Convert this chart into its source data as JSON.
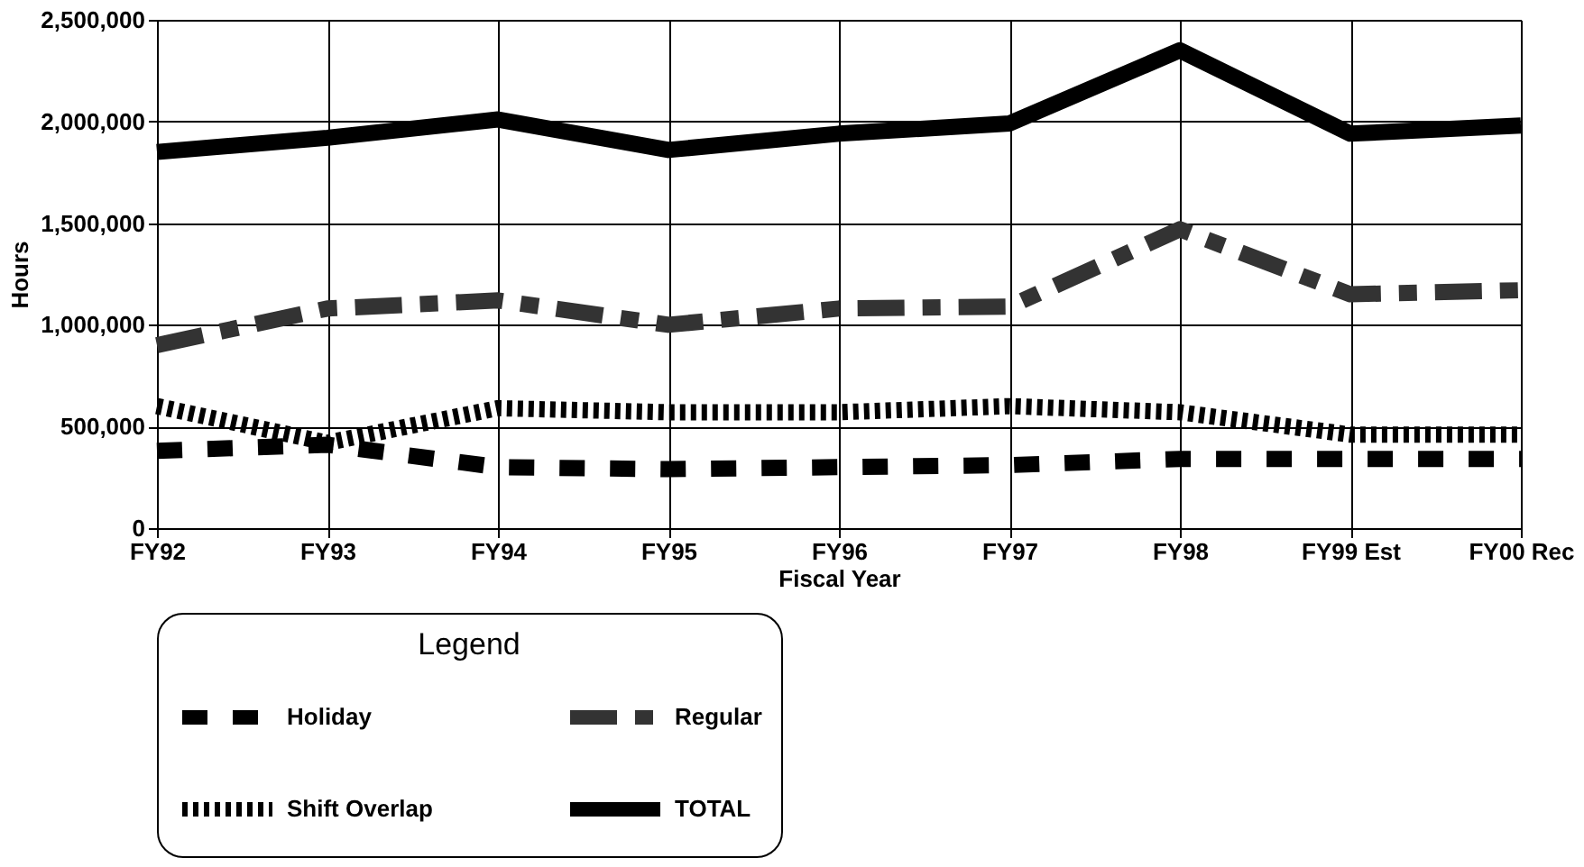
{
  "chart_data": {
    "type": "line",
    "xlabel": "Fiscal Year",
    "ylabel": "Hours",
    "legend_title": "Legend",
    "categories": [
      "FY92",
      "FY93",
      "FY94",
      "FY95",
      "FY96",
      "FY97",
      "FY98",
      "FY99 Est",
      "FY00 Rec"
    ],
    "series": [
      {
        "name": "Holiday",
        "color": "#000000",
        "line_style": "dashed",
        "values": [
          380000,
          410000,
          300000,
          290000,
          300000,
          310000,
          340000,
          340000,
          340000
        ]
      },
      {
        "name": "Regular",
        "color": "#333333",
        "line_style": "dashdot",
        "values": [
          900000,
          1080000,
          1120000,
          1000000,
          1080000,
          1090000,
          1470000,
          1150000,
          1170000
        ]
      },
      {
        "name": "Shift Overlap",
        "color": "#000000",
        "line_style": "dotted",
        "values": [
          600000,
          420000,
          590000,
          570000,
          570000,
          600000,
          570000,
          460000,
          460000
        ]
      },
      {
        "name": "TOTAL",
        "color": "#000000",
        "line_style": "solid",
        "values": [
          1850000,
          1920000,
          2010000,
          1860000,
          1940000,
          1990000,
          2350000,
          1940000,
          1980000
        ]
      }
    ],
    "ylim": [
      0,
      2500000
    ],
    "yticks": [
      0,
      {
        "value": 500000,
        "label": "500,000"
      },
      {
        "value": 1000000,
        "label": "1,000,000"
      },
      {
        "value": 1500000,
        "label": "1,500,000"
      },
      {
        "value": 2000000,
        "label": "2,000,000"
      },
      {
        "value": 2500000,
        "label": "2,500,000"
      }
    ],
    "grid": true,
    "legend": "bottom",
    "marker": "none"
  }
}
